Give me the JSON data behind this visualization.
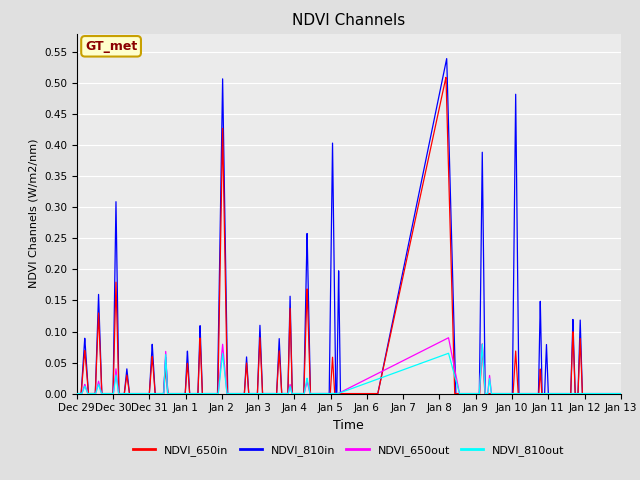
{
  "title": "NDVI Channels",
  "xlabel": "Time",
  "ylabel": "NDVI Channels (W/m2/nm)",
  "legend_label": "GT_met",
  "legend_entries": [
    "NDVI_650in",
    "NDVI_810in",
    "NDVI_650out",
    "NDVI_810out"
  ],
  "line_colors": [
    "red",
    "blue",
    "magenta",
    "cyan"
  ],
  "ylim": [
    0.0,
    0.58
  ],
  "yticks": [
    0.0,
    0.05,
    0.1,
    0.15,
    0.2,
    0.25,
    0.3,
    0.35,
    0.4,
    0.45,
    0.5,
    0.55
  ],
  "xtick_positions": [
    0,
    1,
    2,
    3,
    4,
    5,
    6,
    7,
    8,
    9,
    10,
    11,
    12,
    13,
    14,
    15
  ],
  "xtick_labels": [
    "Dec 29",
    "Dec 30",
    "Dec 31",
    "Jan 1",
    "Jan 2",
    "Jan 3",
    "Jan 4",
    "Jan 5",
    "Jan 6",
    "Jan 7",
    "Jan 8",
    "Jan 9",
    "Jan 10",
    "Jan 11",
    "Jan 12",
    "Jan 13"
  ],
  "bg_color": "#e0e0e0",
  "plot_bg_color": "#ebebeb",
  "grid_color": "#ffffff",
  "annotation_text": "GT_met",
  "annotation_color": "#8b0000",
  "annotation_bg": "#ffffcc",
  "annotation_edge": "#c8a000"
}
